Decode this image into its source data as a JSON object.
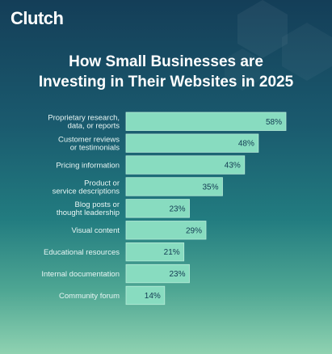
{
  "brand": {
    "logo_text": "Clutch",
    "accent_color": "#ef4a3a"
  },
  "colors": {
    "bar_fill": "#88dcc0",
    "bar_stroke": "#b6ecd8"
  },
  "chart_data": {
    "type": "bar",
    "orientation": "horizontal",
    "title": "How Small Businesses are Investing in Their Websites in 2025",
    "title_lines": [
      "How Small Businesses are",
      "Investing in Their Websites in 2025"
    ],
    "categories": [
      [
        "Proprietary research,",
        "data, or reports"
      ],
      [
        "Customer reviews",
        "or testimonials"
      ],
      [
        "Pricing information"
      ],
      [
        "Product or",
        "service descriptions"
      ],
      [
        "Blog posts or",
        "thought leadership"
      ],
      [
        "Visual content"
      ],
      [
        "Educational resources"
      ],
      [
        "Internal documentation"
      ],
      [
        "Community forum"
      ]
    ],
    "values": [
      58,
      48,
      43,
      35,
      23,
      29,
      21,
      23,
      14
    ],
    "value_labels": [
      "58%",
      "48%",
      "43%",
      "35%",
      "23%",
      "29%",
      "21%",
      "23%",
      "14%"
    ],
    "unit": "%",
    "xlim": [
      0,
      58
    ],
    "grid": false,
    "legend": "none"
  }
}
